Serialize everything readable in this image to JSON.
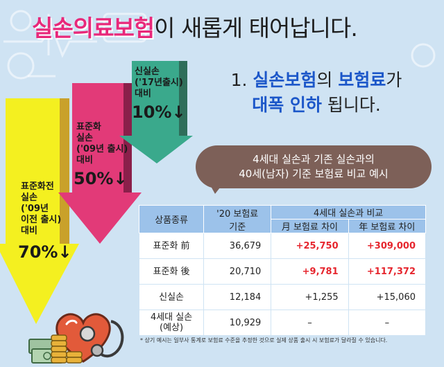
{
  "title": {
    "highlight": "실손의료보험",
    "rest": "이 새롭게 태어납니다."
  },
  "subtitle": {
    "line1_prefix": "1. ",
    "line1_blue1": "실손보험",
    "line1_mid": "의 ",
    "line1_blue2": "보험료",
    "line1_end": "가",
    "line2_blue": "대폭 인하",
    "line2_end": " 됩니다."
  },
  "arrows": [
    {
      "lines": [
        "신실손",
        "('17년출시)",
        "대비"
      ],
      "pct": "10%↓",
      "color": "#3aa98c",
      "level": 0.1
    },
    {
      "lines": [
        "표준화",
        "실손",
        "('09년 출시)",
        "대비"
      ],
      "pct": "50%↓",
      "color": "#e23a78",
      "level": 0.5
    },
    {
      "lines": [
        "표준화전",
        "실손",
        "('09년",
        "이전 출시)",
        "대비"
      ],
      "pct": "70%↓",
      "color": "#f4f020",
      "level": 0.7
    }
  ],
  "bubble": {
    "line1": "4세대 실손과 기존 실손과의",
    "line2": "40세(남자) 기준 보험료 비교 예시"
  },
  "table": {
    "headers": {
      "product": "상품종류",
      "premium_20": "'20 보험료",
      "premium_20_sub": "기준",
      "compare": "4세대 실손과 비교",
      "monthly": "月 보험료 차이",
      "yearly": "年 보험료 차이"
    },
    "rows": [
      {
        "name": "표준화 前",
        "name2": "",
        "premium": "36,679",
        "monthly": "+25,750",
        "yearly": "+309,000",
        "red": true
      },
      {
        "name": "표준화 後",
        "name2": "",
        "premium": "20,710",
        "monthly": "+9,781",
        "yearly": "+117,372",
        "red": true
      },
      {
        "name": "신실손",
        "name2": "",
        "premium": "12,184",
        "monthly": "+1,255",
        "yearly": "+15,060",
        "red": false
      },
      {
        "name": "4세대 실손",
        "name2": "(예상)",
        "premium": "10,929",
        "monthly": "–",
        "yearly": "–",
        "red": false
      }
    ]
  },
  "footnote": "* 상기 예시는 일부사 통계로 보험료 수준을 추정한 것으로 실제 상품 출시 시 보험료가 달라질 수 있습니다.",
  "colors": {
    "background": "#cfe3f3",
    "title_pink": "#e8287a",
    "subtitle_blue": "#1c57c9",
    "bubble": "#7d6058",
    "table_header": "#9cc2ea",
    "red_value": "#e6262e"
  },
  "icons": [
    "heart-icon",
    "stethoscope-icon",
    "coin-stack-icon",
    "banknote-icon"
  ]
}
